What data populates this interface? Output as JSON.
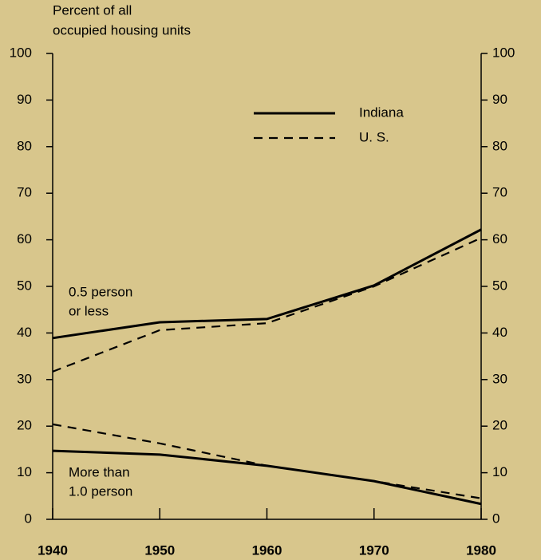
{
  "chart_data": {
    "type": "line",
    "ylabel": [
      "Percent of all",
      "occupied housing units"
    ],
    "x": [
      1940,
      1950,
      1960,
      1970,
      1980
    ],
    "xlim": [
      1940,
      1980
    ],
    "xticks": [
      1940,
      1950,
      1960,
      1970,
      1980
    ],
    "ylim": [
      0,
      100
    ],
    "yticks": [
      0,
      10,
      20,
      30,
      40,
      50,
      60,
      70,
      80,
      90,
      100
    ],
    "y2lim": [
      0,
      100
    ],
    "y2ticks": [
      0,
      10,
      20,
      30,
      40,
      50,
      60,
      70,
      80,
      90,
      100
    ],
    "series": [
      {
        "name": "Indiana",
        "style": "solid",
        "color": "#000000",
        "values": [
          [
            38.9,
            42.3,
            43,
            50.2,
            62.2
          ],
          [
            14.7,
            13.9,
            11.5,
            8.2,
            3.3
          ]
        ]
      },
      {
        "name": "U. S.",
        "style": "dashed",
        "color": "#000000",
        "values": [
          [
            31.7,
            40.6,
            42.1,
            50,
            60.4
          ],
          [
            20.4,
            16.3,
            11.5,
            8.2,
            4.5
          ]
        ]
      }
    ],
    "annotations": [
      {
        "lines": [
          "0.5 person",
          "or less"
        ]
      },
      {
        "lines": [
          "More than",
          "1.0 person"
        ]
      }
    ]
  }
}
